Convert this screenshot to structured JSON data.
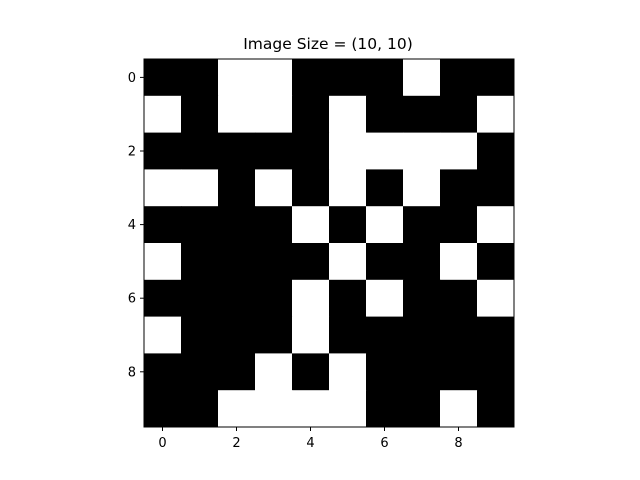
{
  "chart_data": {
    "type": "heatmap",
    "title": "Image Size = (10, 10)",
    "xlabel": "",
    "ylabel": "",
    "xlim": [
      -0.5,
      9.5
    ],
    "ylim": [
      9.5,
      -0.5
    ],
    "xticks": [
      0,
      2,
      4,
      6,
      8
    ],
    "yticks": [
      0,
      2,
      4,
      6,
      8
    ],
    "xtick_labels": [
      "0",
      "2",
      "4",
      "6",
      "8"
    ],
    "ytick_labels": [
      "0",
      "2",
      "4",
      "6",
      "8"
    ],
    "grid": false,
    "colormap": {
      "0": "#000000",
      "1": "#ffffff"
    },
    "matrix": [
      [
        0,
        0,
        1,
        1,
        0,
        0,
        0,
        1,
        0,
        0
      ],
      [
        1,
        0,
        1,
        1,
        0,
        1,
        0,
        0,
        0,
        1
      ],
      [
        0,
        0,
        0,
        0,
        0,
        1,
        1,
        1,
        1,
        0
      ],
      [
        1,
        1,
        0,
        1,
        0,
        1,
        0,
        1,
        0,
        0
      ],
      [
        0,
        0,
        0,
        0,
        1,
        0,
        1,
        0,
        0,
        1
      ],
      [
        1,
        0,
        0,
        0,
        0,
        1,
        0,
        0,
        1,
        0
      ],
      [
        0,
        0,
        0,
        0,
        1,
        0,
        1,
        0,
        0,
        1
      ],
      [
        1,
        0,
        0,
        0,
        1,
        0,
        0,
        0,
        0,
        0
      ],
      [
        0,
        0,
        0,
        1,
        0,
        1,
        0,
        0,
        0,
        0
      ],
      [
        0,
        0,
        1,
        1,
        1,
        1,
        0,
        0,
        1,
        0
      ]
    ]
  }
}
